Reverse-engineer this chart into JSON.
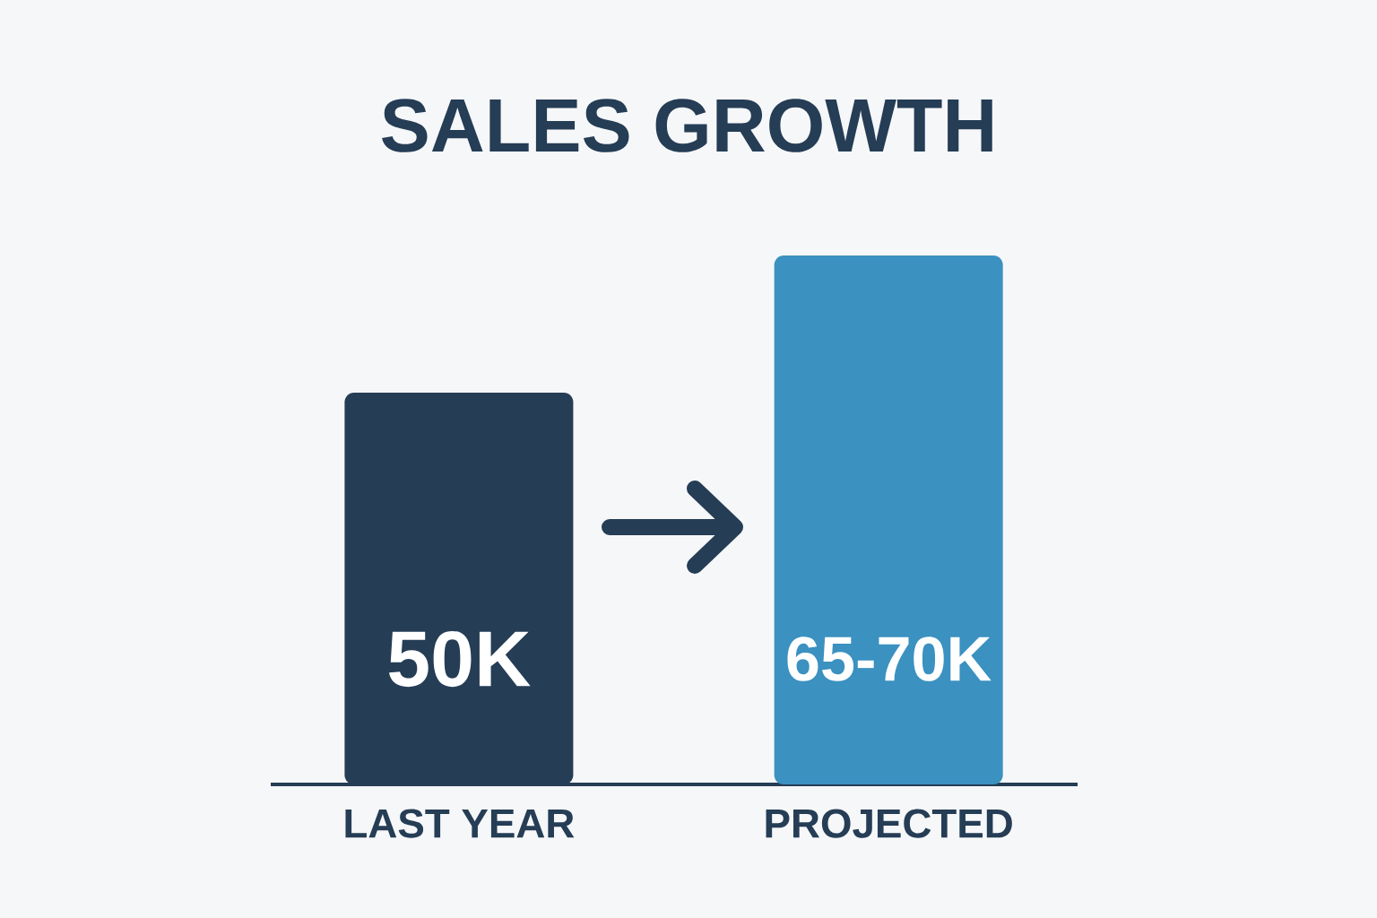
{
  "chart_data": {
    "type": "bar",
    "title": "SALES GROWTH",
    "categories": [
      "LAST YEAR",
      "PROJECTED"
    ],
    "values": [
      50000,
      67500
    ],
    "colors": [
      "#253d55",
      "#3b91c0"
    ],
    "value_labels": [
      "50K",
      "65-70K"
    ]
  }
}
